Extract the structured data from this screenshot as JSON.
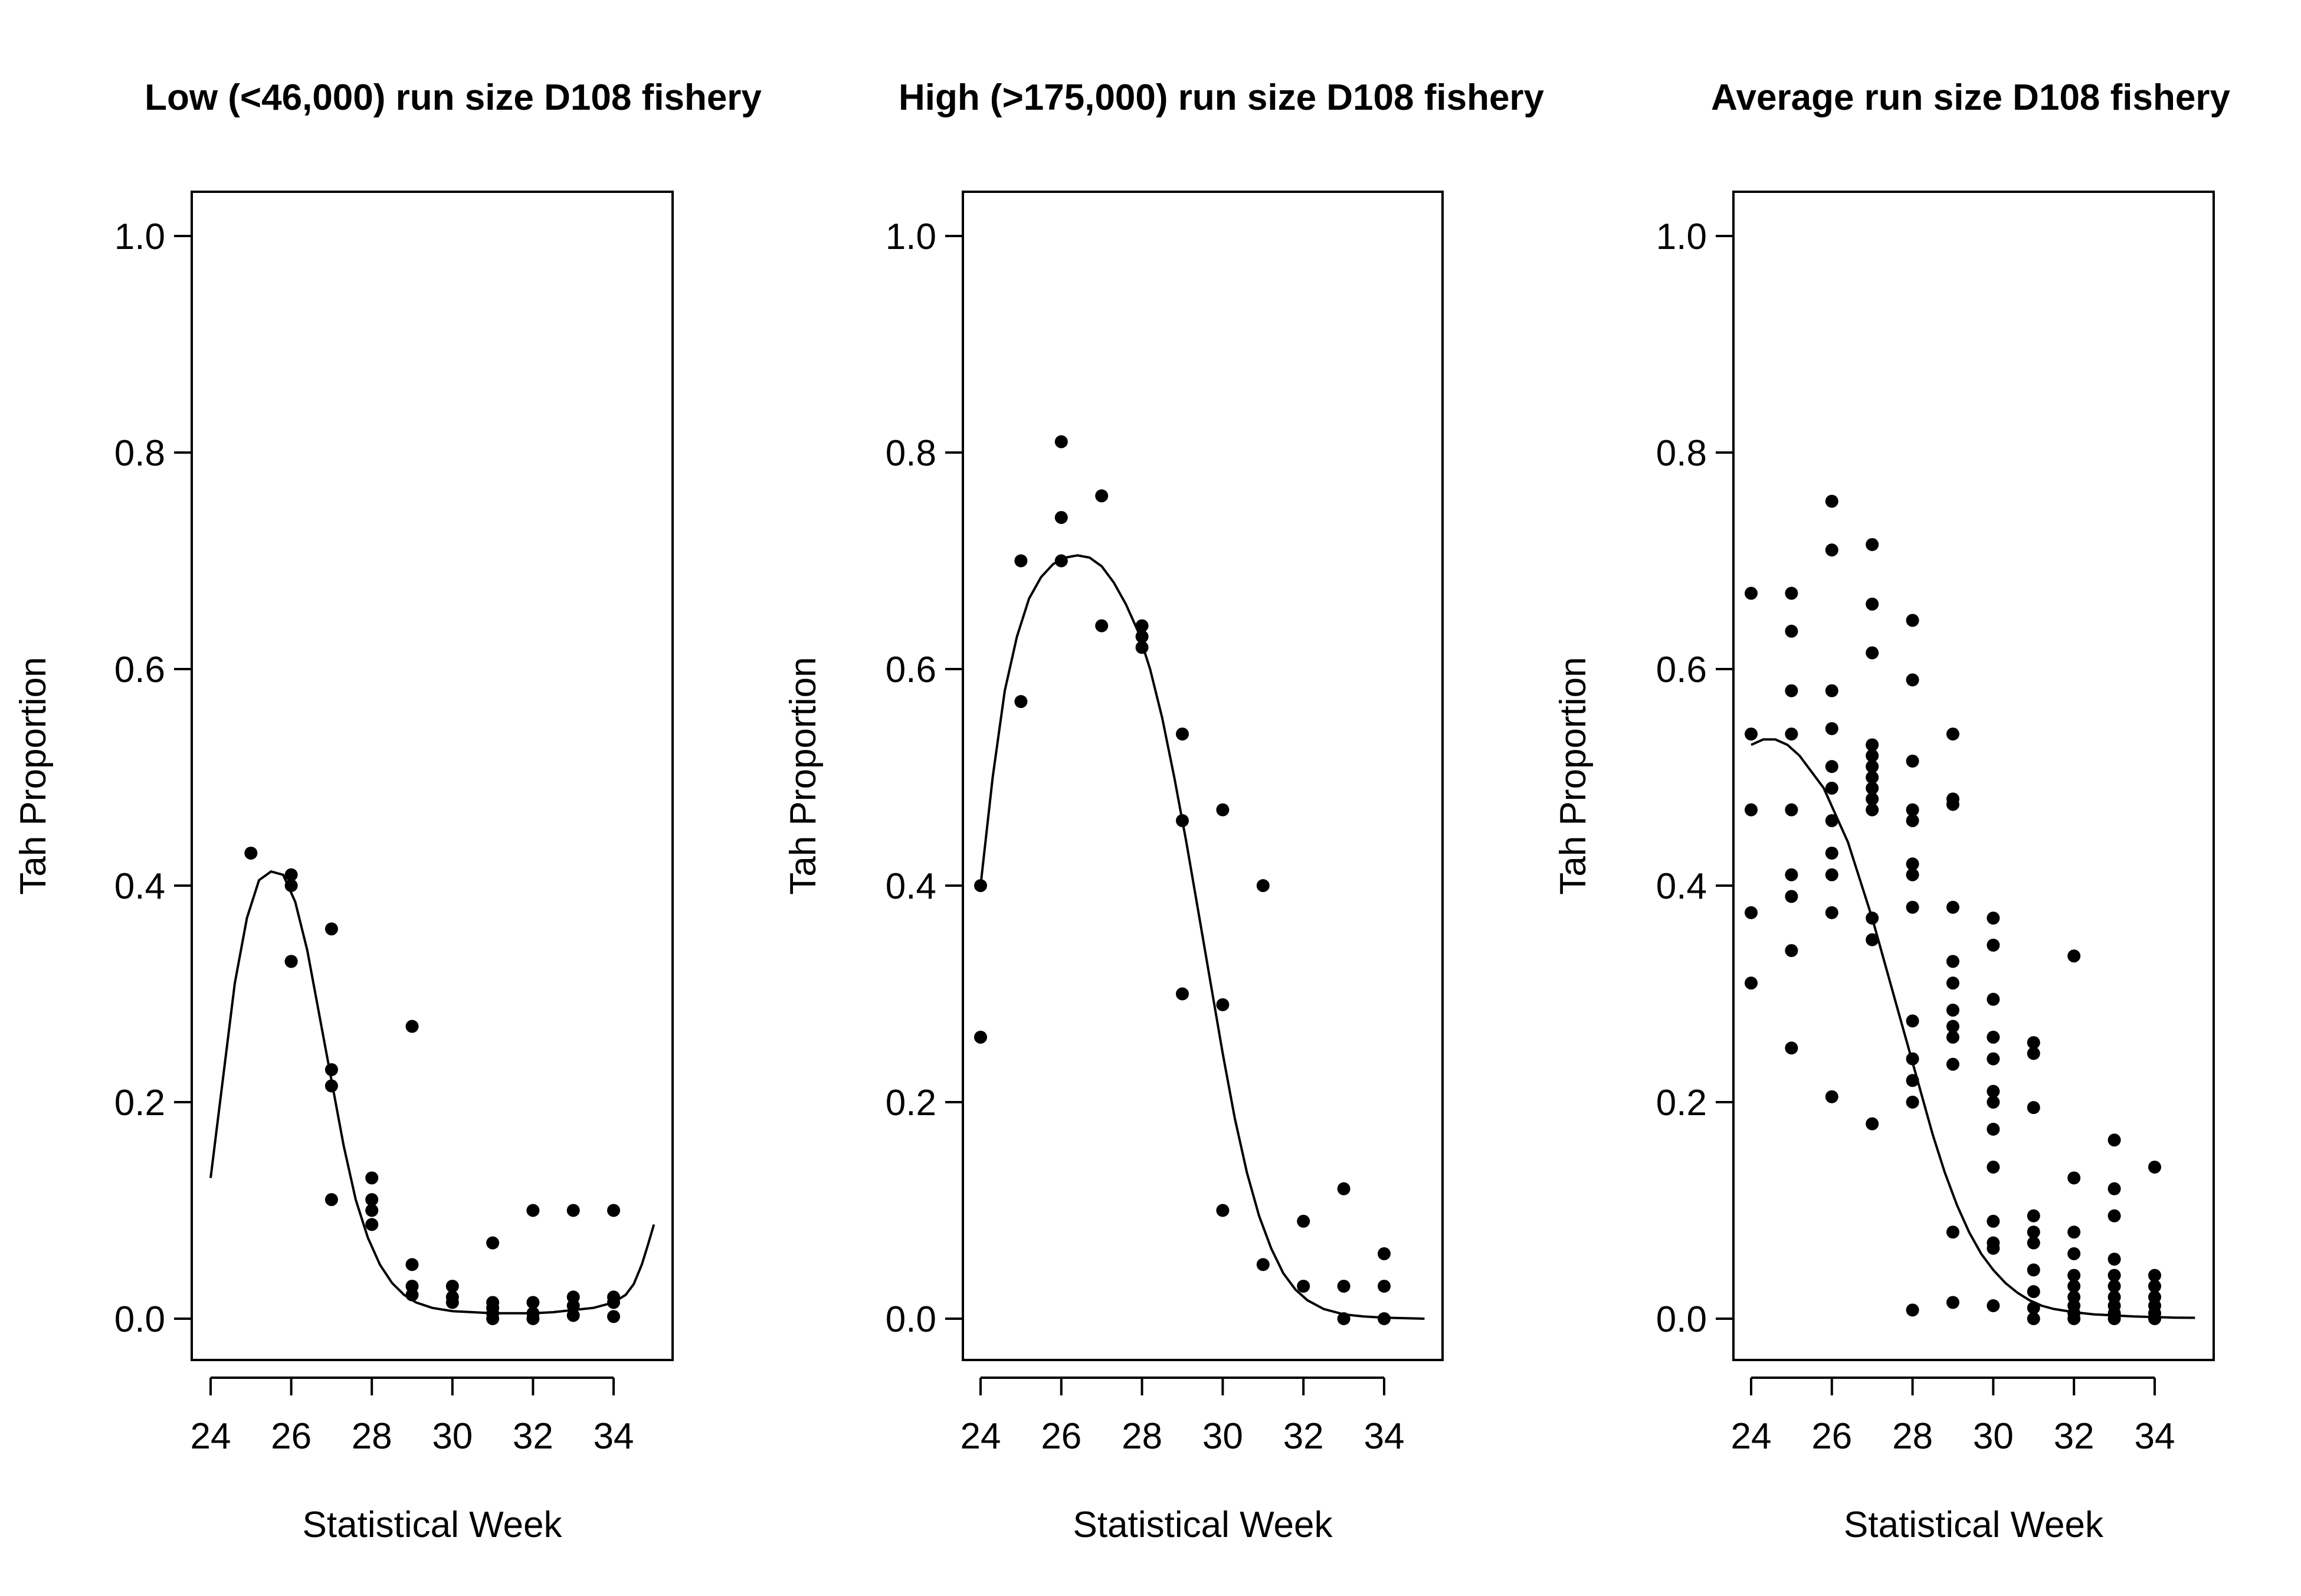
{
  "chart_data": [
    {
      "type": "scatter",
      "title": "Low (<46,000) run size D108 fishery",
      "xlabel": "Statistical Week",
      "ylabel": "Tah Proportion",
      "xlim": [
        24,
        35
      ],
      "ylim": [
        -0.04,
        1.04
      ],
      "xticks": [
        "24",
        "26",
        "28",
        "30",
        "32",
        "34"
      ],
      "yticks": [
        "0.0",
        "0.2",
        "0.4",
        "0.6",
        "0.8",
        "1.0"
      ],
      "grid": false,
      "points": [
        [
          25,
          0.43
        ],
        [
          26,
          0.41
        ],
        [
          26,
          0.4
        ],
        [
          26,
          0.33
        ],
        [
          26,
          0.33
        ],
        [
          27,
          0.36
        ],
        [
          27,
          0.23
        ],
        [
          27,
          0.215
        ],
        [
          27,
          0.11
        ],
        [
          28,
          0.13
        ],
        [
          28,
          0.11
        ],
        [
          28,
          0.1
        ],
        [
          28,
          0.087
        ],
        [
          29,
          0.27
        ],
        [
          29,
          0.05
        ],
        [
          29,
          0.03
        ],
        [
          29,
          0.022
        ],
        [
          30,
          0.03
        ],
        [
          30,
          0.02
        ],
        [
          30,
          0.015
        ],
        [
          31,
          0.07
        ],
        [
          31,
          0.015
        ],
        [
          31,
          0.01
        ],
        [
          31,
          0.005
        ],
        [
          31,
          0.0
        ],
        [
          32,
          0.1
        ],
        [
          32,
          0.015
        ],
        [
          32,
          0.005
        ],
        [
          32,
          0.0
        ],
        [
          33,
          0.1
        ],
        [
          33,
          0.02
        ],
        [
          33,
          0.012
        ],
        [
          33,
          0.003
        ],
        [
          34,
          0.1
        ],
        [
          34,
          0.02
        ],
        [
          34,
          0.015
        ],
        [
          34,
          0.002
        ]
      ],
      "curve": [
        [
          24,
          0.13
        ],
        [
          24.3,
          0.22
        ],
        [
          24.6,
          0.31
        ],
        [
          24.9,
          0.37
        ],
        [
          25.2,
          0.405
        ],
        [
          25.5,
          0.413
        ],
        [
          25.8,
          0.41
        ],
        [
          26.1,
          0.385
        ],
        [
          26.4,
          0.34
        ],
        [
          26.7,
          0.28
        ],
        [
          27.0,
          0.22
        ],
        [
          27.3,
          0.16
        ],
        [
          27.6,
          0.11
        ],
        [
          27.9,
          0.075
        ],
        [
          28.2,
          0.05
        ],
        [
          28.5,
          0.033
        ],
        [
          28.8,
          0.022
        ],
        [
          29.1,
          0.015
        ],
        [
          29.5,
          0.01
        ],
        [
          30.0,
          0.007
        ],
        [
          30.5,
          0.006
        ],
        [
          31.0,
          0.005
        ],
        [
          31.5,
          0.005
        ],
        [
          32.0,
          0.005
        ],
        [
          32.5,
          0.006
        ],
        [
          33.0,
          0.008
        ],
        [
          33.5,
          0.01
        ],
        [
          34.0,
          0.015
        ],
        [
          34.3,
          0.022
        ],
        [
          34.5,
          0.032
        ],
        [
          34.7,
          0.05
        ],
        [
          34.85,
          0.068
        ],
        [
          35.0,
          0.087
        ]
      ]
    },
    {
      "type": "scatter",
      "title": "High (>175,000) run size D108 fishery",
      "xlabel": "Statistical Week",
      "ylabel": "Tah Proportion",
      "xlim": [
        24,
        35
      ],
      "ylim": [
        -0.04,
        1.04
      ],
      "xticks": [
        "24",
        "26",
        "28",
        "30",
        "32",
        "34"
      ],
      "yticks": [
        "0.0",
        "0.2",
        "0.4",
        "0.6",
        "0.8",
        "1.0"
      ],
      "grid": false,
      "points": [
        [
          24,
          0.4
        ],
        [
          24,
          0.26
        ],
        [
          25,
          0.7
        ],
        [
          25,
          0.57
        ],
        [
          26,
          0.81
        ],
        [
          26,
          0.74
        ],
        [
          26,
          0.7
        ],
        [
          27,
          0.76
        ],
        [
          27,
          0.64
        ],
        [
          28,
          0.64
        ],
        [
          28,
          0.63
        ],
        [
          28,
          0.62
        ],
        [
          29,
          0.54
        ],
        [
          29,
          0.46
        ],
        [
          29,
          0.3
        ],
        [
          30,
          0.47
        ],
        [
          30,
          0.29
        ],
        [
          30,
          0.1
        ],
        [
          31,
          0.4
        ],
        [
          31,
          0.05
        ],
        [
          32,
          0.09
        ],
        [
          32,
          0.03
        ],
        [
          33,
          0.12
        ],
        [
          33,
          0.03
        ],
        [
          33,
          0.0
        ],
        [
          34,
          0.06
        ],
        [
          34,
          0.03
        ],
        [
          34,
          0.0
        ]
      ],
      "curve": [
        [
          24,
          0.4
        ],
        [
          24.3,
          0.5
        ],
        [
          24.6,
          0.58
        ],
        [
          24.9,
          0.63
        ],
        [
          25.2,
          0.665
        ],
        [
          25.5,
          0.685
        ],
        [
          25.8,
          0.697
        ],
        [
          26.1,
          0.703
        ],
        [
          26.4,
          0.705
        ],
        [
          26.7,
          0.703
        ],
        [
          27.0,
          0.695
        ],
        [
          27.3,
          0.68
        ],
        [
          27.6,
          0.66
        ],
        [
          27.9,
          0.635
        ],
        [
          28.2,
          0.6
        ],
        [
          28.5,
          0.555
        ],
        [
          28.8,
          0.5
        ],
        [
          29.1,
          0.44
        ],
        [
          29.4,
          0.375
        ],
        [
          29.7,
          0.31
        ],
        [
          30.0,
          0.245
        ],
        [
          30.3,
          0.185
        ],
        [
          30.6,
          0.135
        ],
        [
          30.9,
          0.095
        ],
        [
          31.2,
          0.065
        ],
        [
          31.5,
          0.042
        ],
        [
          31.8,
          0.027
        ],
        [
          32.1,
          0.017
        ],
        [
          32.5,
          0.009
        ],
        [
          33.0,
          0.004
        ],
        [
          33.5,
          0.002
        ],
        [
          34.0,
          0.001
        ],
        [
          35.0,
          0.0
        ]
      ]
    },
    {
      "type": "scatter",
      "title": "Average run size D108 fishery",
      "xlabel": "Statistical Week",
      "ylabel": "Tah Proportion",
      "xlim": [
        24,
        35
      ],
      "ylim": [
        -0.04,
        1.04
      ],
      "xticks": [
        "24",
        "26",
        "28",
        "30",
        "32",
        "34"
      ],
      "yticks": [
        "0.0",
        "0.2",
        "0.4",
        "0.6",
        "0.8",
        "1.0"
      ],
      "grid": false,
      "points": [
        [
          24,
          0.67
        ],
        [
          24,
          0.54
        ],
        [
          24,
          0.47
        ],
        [
          24,
          0.375
        ],
        [
          24,
          0.31
        ],
        [
          25,
          0.67
        ],
        [
          25,
          0.635
        ],
        [
          25,
          0.58
        ],
        [
          25,
          0.54
        ],
        [
          25,
          0.47
        ],
        [
          25,
          0.41
        ],
        [
          25,
          0.39
        ],
        [
          25,
          0.34
        ],
        [
          25,
          0.25
        ],
        [
          26,
          0.755
        ],
        [
          26,
          0.71
        ],
        [
          26,
          0.58
        ],
        [
          26,
          0.545
        ],
        [
          26,
          0.51
        ],
        [
          26,
          0.49
        ],
        [
          26,
          0.46
        ],
        [
          26,
          0.43
        ],
        [
          26,
          0.41
        ],
        [
          26,
          0.375
        ],
        [
          26,
          0.205
        ],
        [
          27,
          0.715
        ],
        [
          27,
          0.66
        ],
        [
          27,
          0.615
        ],
        [
          27,
          0.53
        ],
        [
          27,
          0.52
        ],
        [
          27,
          0.51
        ],
        [
          27,
          0.5
        ],
        [
          27,
          0.49
        ],
        [
          27,
          0.48
        ],
        [
          27,
          0.47
        ],
        [
          27,
          0.37
        ],
        [
          27,
          0.35
        ],
        [
          27,
          0.18
        ],
        [
          28,
          0.645
        ],
        [
          28,
          0.59
        ],
        [
          28,
          0.515
        ],
        [
          28,
          0.47
        ],
        [
          28,
          0.46
        ],
        [
          28,
          0.42
        ],
        [
          28,
          0.41
        ],
        [
          28,
          0.38
        ],
        [
          28,
          0.275
        ],
        [
          28,
          0.24
        ],
        [
          28,
          0.22
        ],
        [
          28,
          0.2
        ],
        [
          28,
          0.008
        ],
        [
          29,
          0.54
        ],
        [
          29,
          0.48
        ],
        [
          29,
          0.475
        ],
        [
          29,
          0.38
        ],
        [
          29,
          0.33
        ],
        [
          29,
          0.31
        ],
        [
          29,
          0.285
        ],
        [
          29,
          0.27
        ],
        [
          29,
          0.26
        ],
        [
          29,
          0.235
        ],
        [
          29,
          0.08
        ],
        [
          29,
          0.015
        ],
        [
          30,
          0.37
        ],
        [
          30,
          0.345
        ],
        [
          30,
          0.295
        ],
        [
          30,
          0.26
        ],
        [
          30,
          0.24
        ],
        [
          30,
          0.21
        ],
        [
          30,
          0.2
        ],
        [
          30,
          0.175
        ],
        [
          30,
          0.14
        ],
        [
          30,
          0.09
        ],
        [
          30,
          0.07
        ],
        [
          30,
          0.065
        ],
        [
          30,
          0.012
        ],
        [
          31,
          0.255
        ],
        [
          31,
          0.245
        ],
        [
          31,
          0.195
        ],
        [
          31,
          0.095
        ],
        [
          31,
          0.08
        ],
        [
          31,
          0.07
        ],
        [
          31,
          0.045
        ],
        [
          31,
          0.025
        ],
        [
          31,
          0.01
        ],
        [
          31,
          0.0
        ],
        [
          32,
          0.335
        ],
        [
          32,
          0.13
        ],
        [
          32,
          0.08
        ],
        [
          32,
          0.06
        ],
        [
          32,
          0.04
        ],
        [
          32,
          0.03
        ],
        [
          32,
          0.02
        ],
        [
          32,
          0.012
        ],
        [
          32,
          0.005
        ],
        [
          32,
          0.0
        ],
        [
          33,
          0.165
        ],
        [
          33,
          0.12
        ],
        [
          33,
          0.095
        ],
        [
          33,
          0.055
        ],
        [
          33,
          0.04
        ],
        [
          33,
          0.03
        ],
        [
          33,
          0.02
        ],
        [
          33,
          0.012
        ],
        [
          33,
          0.005
        ],
        [
          33,
          0.0
        ],
        [
          34,
          0.14
        ],
        [
          34,
          0.04
        ],
        [
          34,
          0.03
        ],
        [
          34,
          0.02
        ],
        [
          34,
          0.012
        ],
        [
          34,
          0.005
        ],
        [
          34,
          0.0
        ]
      ],
      "curve": [
        [
          24,
          0.53
        ],
        [
          24.3,
          0.535
        ],
        [
          24.6,
          0.535
        ],
        [
          24.9,
          0.53
        ],
        [
          25.2,
          0.52
        ],
        [
          25.5,
          0.505
        ],
        [
          25.8,
          0.49
        ],
        [
          26.1,
          0.465
        ],
        [
          26.4,
          0.44
        ],
        [
          26.7,
          0.405
        ],
        [
          27.0,
          0.37
        ],
        [
          27.3,
          0.33
        ],
        [
          27.6,
          0.29
        ],
        [
          27.9,
          0.25
        ],
        [
          28.2,
          0.21
        ],
        [
          28.5,
          0.17
        ],
        [
          28.8,
          0.135
        ],
        [
          29.1,
          0.105
        ],
        [
          29.4,
          0.08
        ],
        [
          29.7,
          0.06
        ],
        [
          30.0,
          0.045
        ],
        [
          30.3,
          0.033
        ],
        [
          30.6,
          0.024
        ],
        [
          30.9,
          0.017
        ],
        [
          31.2,
          0.012
        ],
        [
          31.5,
          0.009
        ],
        [
          32.0,
          0.006
        ],
        [
          32.5,
          0.004
        ],
        [
          33.0,
          0.003
        ],
        [
          33.5,
          0.002
        ],
        [
          34.0,
          0.0015
        ],
        [
          34.5,
          0.001
        ],
        [
          35.0,
          0.0008
        ]
      ]
    }
  ]
}
